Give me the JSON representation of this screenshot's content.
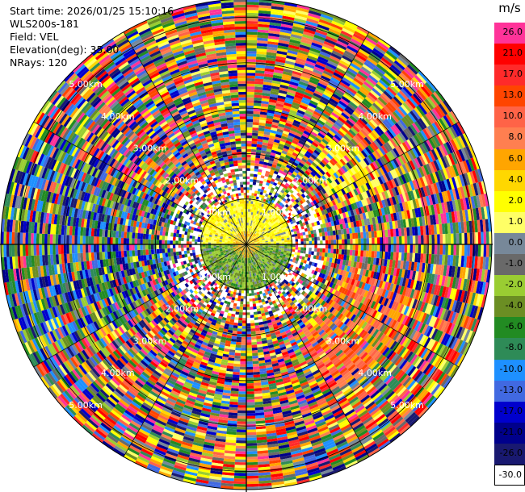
{
  "header": {
    "start_time": "Start time: 2026/01/25 15:10:16",
    "instrument": "WLS200s-181",
    "field": "Field: VEL",
    "elevation": "Elevation(deg): 35.00",
    "nrays": "NRays: 120"
  },
  "colorbar": {
    "unit": "m/s",
    "levels": [
      {
        "label": "26.0",
        "color": "#ff3399"
      },
      {
        "label": "21.0",
        "color": "#ff0000"
      },
      {
        "label": "17.0",
        "color": "#ff2a2a"
      },
      {
        "label": "13.0",
        "color": "#ff4500"
      },
      {
        "label": "10.0",
        "color": "#ff6347"
      },
      {
        "label": "8.0",
        "color": "#ff7f50"
      },
      {
        "label": "6.0",
        "color": "#ffa500"
      },
      {
        "label": "4.0",
        "color": "#ffd700"
      },
      {
        "label": "2.0",
        "color": "#ffff00"
      },
      {
        "label": "1.0",
        "color": "#ffff66"
      },
      {
        "label": "0.0",
        "color": "#778899"
      },
      {
        "label": "-1.0",
        "color": "#696969"
      },
      {
        "label": "-2.0",
        "color": "#9acd32"
      },
      {
        "label": "-4.0",
        "color": "#6b8e23"
      },
      {
        "label": "-6.0",
        "color": "#228b22"
      },
      {
        "label": "-8.0",
        "color": "#2e8b57"
      },
      {
        "label": "-10.0",
        "color": "#1e90ff"
      },
      {
        "label": "-13.0",
        "color": "#4169e1"
      },
      {
        "label": "-17.0",
        "color": "#0000cd"
      },
      {
        "label": "-21.0",
        "color": "#00008b"
      },
      {
        "label": "-26.0",
        "color": "#191970"
      },
      {
        "label": "-30.0",
        "color": "#ffffff"
      }
    ]
  },
  "chart_data": {
    "type": "heatmap",
    "projection": "polar PPI",
    "field": "VEL",
    "elevation_deg": 35.0,
    "n_rays": 120,
    "range_rings_km": [
      1.0,
      2.0,
      3.0,
      4.0,
      5.0
    ],
    "range_ring_labels": [
      "1.00km",
      "2.00km",
      "3.00km",
      "4.00km",
      "5.00km"
    ],
    "azimuth_lines_deg": [
      0,
      30,
      60,
      90,
      120,
      150,
      180,
      210,
      240,
      270,
      300,
      330
    ],
    "max_range_km": 5.4,
    "unit": "m/s",
    "value_range": [
      -30.0,
      26.0
    ],
    "near_field": [
      {
        "sector": "north, < 1 km",
        "dominant_value_ms": 2.0
      },
      {
        "sector": "south, < 1 km",
        "dominant_value_ms": -3.0
      }
    ],
    "far_field": "noisy, values spread over the full color scale"
  }
}
